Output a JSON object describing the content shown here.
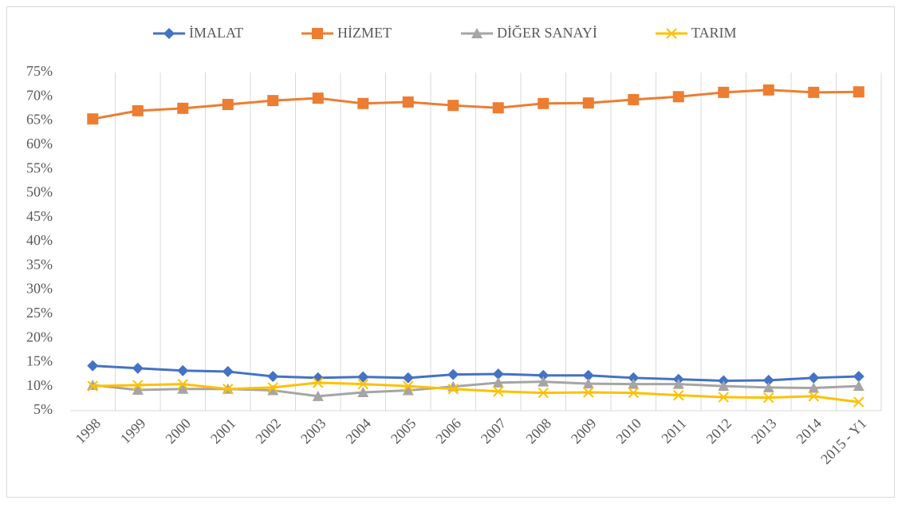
{
  "chart_data": {
    "type": "line",
    "categories": [
      "1998",
      "1999",
      "2000",
      "2001",
      "2002",
      "2003",
      "2004",
      "2005",
      "2006",
      "2007",
      "2008",
      "2009",
      "2010",
      "2011",
      "2012",
      "2013",
      "2014",
      "2015 - Y1"
    ],
    "series": [
      {
        "name": "İMALAT",
        "color": "#4472c4",
        "marker": "diamond",
        "values": [
          14.3,
          13.8,
          13.3,
          13.1,
          12.1,
          11.8,
          12.0,
          11.8,
          12.5,
          12.6,
          12.3,
          12.3,
          11.8,
          11.5,
          11.2,
          11.3,
          11.8,
          12.1
        ]
      },
      {
        "name": "HİZMET",
        "color": "#ed7d31",
        "marker": "square",
        "values": [
          65.4,
          67.1,
          67.6,
          68.4,
          69.2,
          69.7,
          68.6,
          68.9,
          68.2,
          67.7,
          68.6,
          68.7,
          69.4,
          70.0,
          70.9,
          71.4,
          70.9,
          71.0
        ]
      },
      {
        "name": "DİĞER SANAYİ",
        "color": "#a5a5a5",
        "marker": "triangle",
        "values": [
          10.3,
          9.3,
          9.5,
          9.5,
          9.2,
          8.0,
          8.8,
          9.2,
          10.0,
          10.8,
          11.0,
          10.6,
          10.5,
          10.5,
          10.1,
          9.8,
          9.7,
          10.1
        ]
      },
      {
        "name": "TARIM",
        "color": "#ffc000",
        "marker": "x",
        "values": [
          10.1,
          10.3,
          10.5,
          9.5,
          9.8,
          10.8,
          10.5,
          10.1,
          9.5,
          9.0,
          8.7,
          8.8,
          8.7,
          8.2,
          7.8,
          7.7,
          8.0,
          6.8
        ]
      }
    ],
    "ylim": [
      5,
      75
    ],
    "yticks": [
      {
        "value": 5,
        "label": "5%"
      },
      {
        "value": 10,
        "label": "10%"
      },
      {
        "value": 15,
        "label": "15%"
      },
      {
        "value": 20,
        "label": "20%"
      },
      {
        "value": 25,
        "label": "25%"
      },
      {
        "value": 30,
        "label": "30%"
      },
      {
        "value": 35,
        "label": "35%"
      },
      {
        "value": 40,
        "label": "40%"
      },
      {
        "value": 45,
        "label": "45%"
      },
      {
        "value": 50,
        "label": "50%"
      },
      {
        "value": 55,
        "label": "55%"
      },
      {
        "value": 60,
        "label": "60%"
      },
      {
        "value": 65,
        "label": "65%"
      },
      {
        "value": 70,
        "label": "70%"
      },
      {
        "value": 75,
        "label": "75%"
      }
    ],
    "legend": "top"
  }
}
